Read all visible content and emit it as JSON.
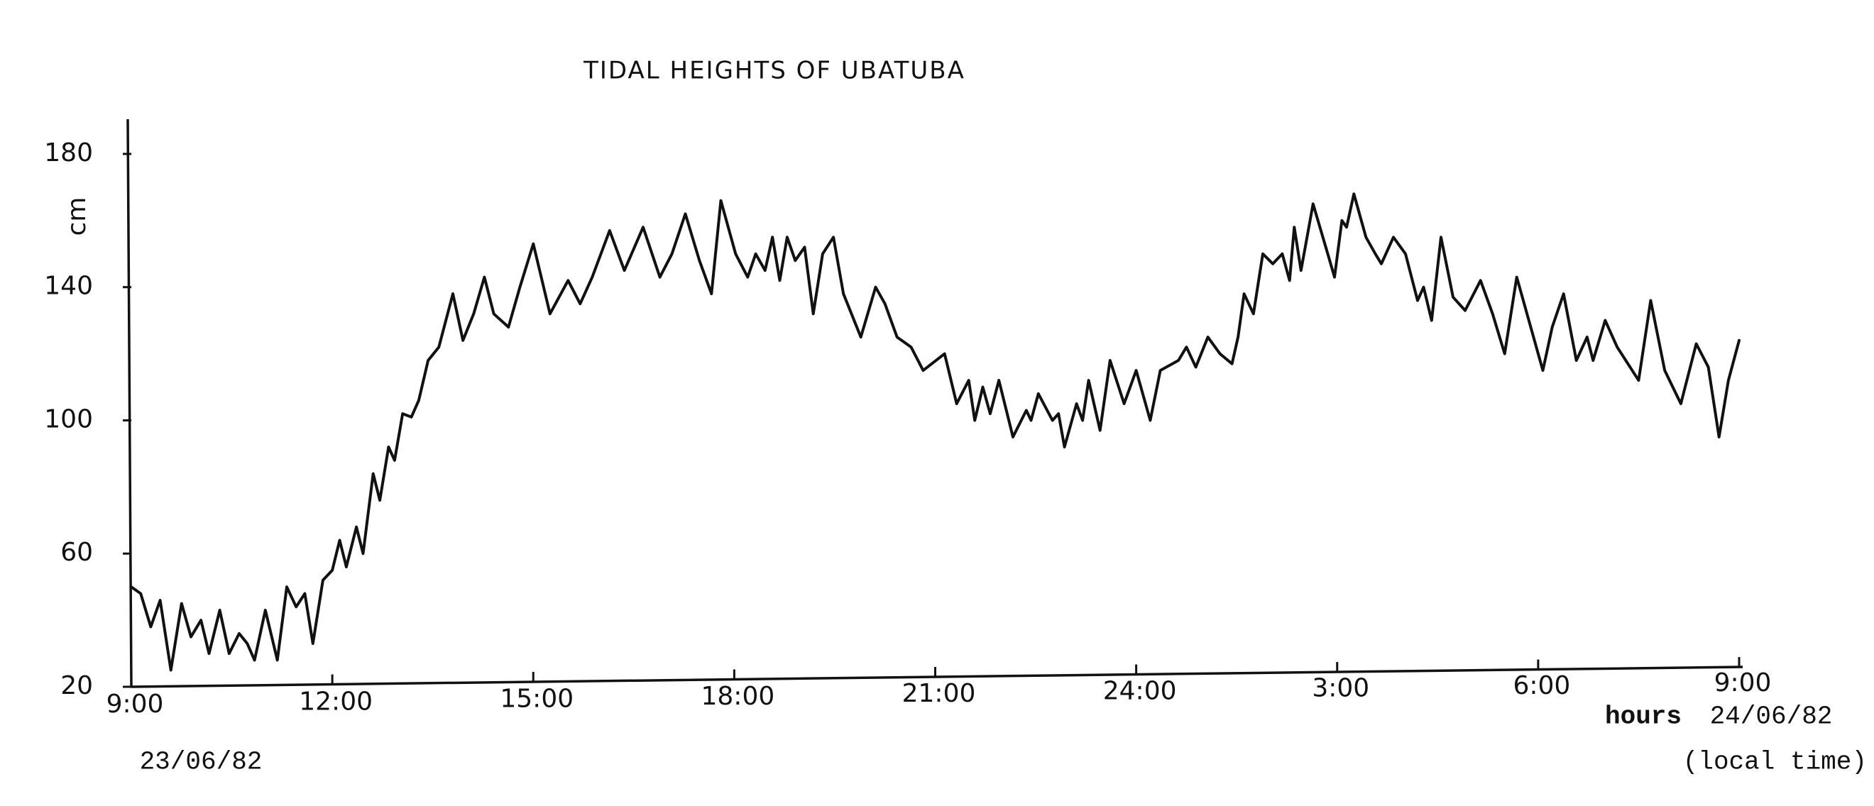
{
  "chart_data": {
    "type": "line",
    "title": "TIDAL HEIGHTS OF UBATUBA",
    "y_label": "cm",
    "x_label": "hours",
    "start_date": "23/06/82",
    "end_date": "24/06/82",
    "x_note": "(local time)",
    "xlim": [
      9,
      33
    ],
    "ylim": [
      20,
      190
    ],
    "xticks": [
      {
        "value": 9,
        "label": "9:00"
      },
      {
        "value": 12,
        "label": "12:00"
      },
      {
        "value": 15,
        "label": "15:00"
      },
      {
        "value": 18,
        "label": "18:00"
      },
      {
        "value": 21,
        "label": "21:00"
      },
      {
        "value": 24,
        "label": "24:00"
      },
      {
        "value": 27,
        "label": "3:00"
      },
      {
        "value": 30,
        "label": "6:00"
      },
      {
        "value": 33,
        "label": "9:00"
      }
    ],
    "yticks": [
      20,
      60,
      100,
      140,
      180
    ],
    "color": "#111111",
    "x": [
      9.0,
      9.14,
      9.29,
      9.43,
      9.59,
      9.75,
      9.89,
      10.04,
      10.16,
      10.32,
      10.46,
      10.61,
      10.73,
      10.84,
      11.0,
      11.18,
      11.32,
      11.46,
      11.59,
      11.71,
      11.86,
      12.0,
      12.11,
      12.21,
      12.36,
      12.46,
      12.61,
      12.71,
      12.84,
      12.93,
      13.05,
      13.18,
      13.29,
      13.43,
      13.59,
      13.8,
      13.95,
      14.11,
      14.27,
      14.41,
      14.63,
      14.8,
      15.0,
      15.25,
      15.52,
      15.7,
      15.88,
      16.14,
      16.36,
      16.64,
      16.89,
      17.07,
      17.27,
      17.48,
      17.66,
      17.8,
      18.02,
      18.2,
      18.32,
      18.46,
      18.57,
      18.68,
      18.79,
      18.91,
      19.05,
      19.18,
      19.32,
      19.48,
      19.63,
      19.89,
      20.11,
      20.25,
      20.43,
      20.64,
      20.82,
      21.14,
      21.32,
      21.5,
      21.59,
      21.71,
      21.82,
      21.95,
      22.16,
      22.36,
      22.43,
      22.54,
      22.75,
      22.84,
      22.93,
      23.11,
      23.2,
      23.29,
      23.46,
      23.61,
      23.82,
      24.0,
      24.21,
      24.36,
      24.63,
      24.75,
      24.89,
      25.07,
      25.25,
      25.43,
      25.52,
      25.61,
      25.75,
      25.89,
      26.04,
      26.18,
      26.29,
      26.36,
      26.46,
      26.64,
      26.86,
      26.96,
      27.07,
      27.14,
      27.25,
      27.43,
      27.57,
      27.66,
      27.84,
      28.02,
      28.2,
      28.29,
      28.41,
      28.55,
      28.73,
      28.91,
      29.14,
      29.32,
      29.5,
      29.68,
      30.07,
      30.21,
      30.38,
      30.57,
      30.73,
      30.82,
      31.0,
      31.18,
      31.5,
      31.68,
      31.89,
      32.13,
      32.36,
      32.54,
      32.7,
      32.84,
      33.0
    ],
    "values": [
      50,
      48,
      38,
      46,
      25,
      45,
      35,
      40,
      30,
      43,
      30,
      36,
      33,
      28,
      43,
      28,
      50,
      44,
      48,
      33,
      52,
      55,
      64,
      56,
      68,
      60,
      84,
      76,
      92,
      88,
      102,
      101,
      106,
      118,
      122,
      138,
      124,
      132,
      143,
      132,
      128,
      140,
      153,
      132,
      142,
      135,
      143,
      157,
      145,
      158,
      143,
      150,
      162,
      148,
      138,
      166,
      150,
      143,
      150,
      145,
      155,
      142,
      155,
      148,
      152,
      132,
      150,
      155,
      138,
      125,
      140,
      135,
      125,
      122,
      115,
      120,
      105,
      112,
      100,
      110,
      102,
      112,
      95,
      103,
      100,
      108,
      100,
      102,
      92,
      105,
      100,
      112,
      97,
      118,
      105,
      115,
      100,
      115,
      118,
      122,
      116,
      125,
      120,
      117,
      125,
      138,
      132,
      150,
      147,
      150,
      142,
      158,
      145,
      165,
      150,
      143,
      160,
      158,
      168,
      155,
      150,
      147,
      155,
      150,
      136,
      140,
      130,
      155,
      137,
      133,
      142,
      132,
      120,
      143,
      115,
      128,
      138,
      118,
      125,
      118,
      130,
      122,
      112,
      136,
      115,
      105,
      123,
      116,
      95,
      112,
      124
    ]
  }
}
